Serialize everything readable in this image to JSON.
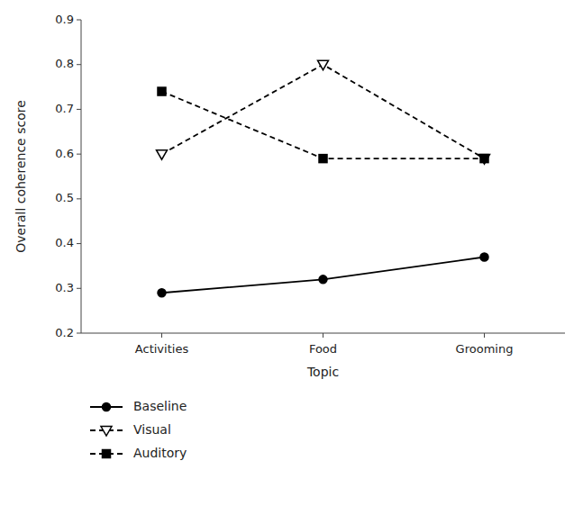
{
  "chart_data": {
    "type": "line",
    "categories": [
      "Activities",
      "Food",
      "Grooming"
    ],
    "series": [
      {
        "name": "Baseline",
        "color": "#000000",
        "values": [
          0.29,
          0.32,
          0.37
        ],
        "marker": "circle",
        "line_style": "solid"
      },
      {
        "name": "Visual",
        "color": "#000000",
        "values": [
          0.6,
          0.8,
          0.59
        ],
        "marker": "triangle-down-open",
        "line_style": "dashed"
      },
      {
        "name": "Auditory",
        "color": "#000000",
        "values": [
          0.74,
          0.59,
          0.59
        ],
        "marker": "square",
        "line_style": "dashed"
      }
    ],
    "xlabel": "Topic",
    "ylabel": "Overall coherence score",
    "ylim": [
      0.2,
      0.9
    ],
    "yticks": [
      0.2,
      0.3,
      0.4,
      0.5,
      0.6,
      0.7,
      0.8,
      0.9
    ],
    "grid": false,
    "legend": "bottom"
  }
}
